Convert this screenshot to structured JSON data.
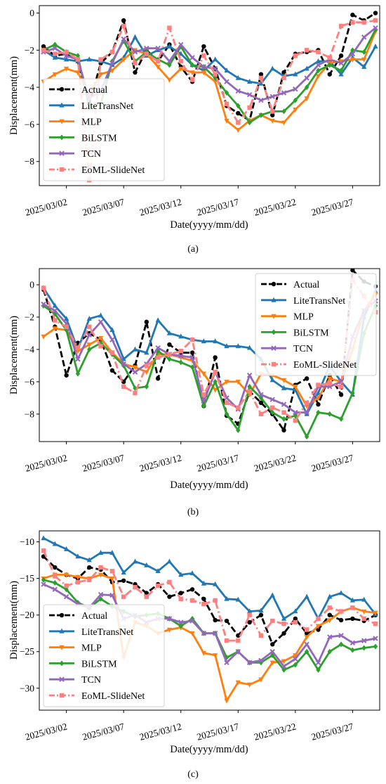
{
  "figure": {
    "panels": [
      {
        "caption": "(a)",
        "xlabel": "Date(yyyy/mm/dd)",
        "ylabel": "Displacement(mm)",
        "legend_position": "lower-left"
      },
      {
        "caption": "(b)",
        "xlabel": "Date(yyyy/mm/dd)",
        "ylabel": "Displacement(mm)",
        "legend_position": "upper-right"
      },
      {
        "caption": "(c)",
        "xlabel": "Date(yyyy/mm/dd)",
        "ylabel": "Displacement(mm)",
        "legend_position": "lower-left"
      }
    ]
  },
  "chart_data": [
    {
      "type": "line",
      "title": "",
      "xlabel": "Date(yyyy/mm/dd)",
      "ylabel": "Displacement(mm)",
      "x": [
        "2025/02/28",
        "2025/03/01",
        "2025/03/02",
        "2025/03/03",
        "2025/03/04",
        "2025/03/05",
        "2025/03/06",
        "2025/03/07",
        "2025/03/08",
        "2025/03/09",
        "2025/03/10",
        "2025/03/11",
        "2025/03/12",
        "2025/03/13",
        "2025/03/14",
        "2025/03/15",
        "2025/03/16",
        "2025/03/17",
        "2025/03/18",
        "2025/03/19",
        "2025/03/20",
        "2025/03/21",
        "2025/03/22",
        "2025/03/23",
        "2025/03/24",
        "2025/03/25",
        "2025/03/26",
        "2025/03/27",
        "2025/03/28",
        "2025/03/29"
      ],
      "x_ticks": [
        "2025/03/02",
        "2025/03/07",
        "2025/03/12",
        "2025/03/17",
        "2025/03/22",
        "2025/03/27"
      ],
      "ylim": [
        -9.3,
        0.4
      ],
      "y_ticks": [
        0,
        -2,
        -4,
        -6,
        -8
      ],
      "legend": "lower-left",
      "grid": false,
      "series": [
        {
          "name": "Actual",
          "color": "#000000",
          "marker": "circle",
          "dash": "dashed",
          "values": [
            -1.8,
            -2.3,
            -2.2,
            -2.6,
            -4.9,
            -2.7,
            -2.1,
            -0.4,
            -3.2,
            -2.0,
            -2.6,
            -1.7,
            -2.9,
            -3.7,
            -1.8,
            -3.0,
            -5.0,
            -5.4,
            -5.8,
            -3.3,
            -5.5,
            -3.2,
            -2.2,
            -2.1,
            -2.0,
            -3.3,
            -2.3,
            -0.1,
            -0.4,
            0.0
          ]
        },
        {
          "name": "LiteTransNet",
          "color": "#1f77b4",
          "marker": "triangle-up",
          "dash": "solid",
          "values": [
            -2.0,
            -2.4,
            -2.5,
            -2.6,
            -2.5,
            -2.6,
            -2.8,
            -2.4,
            -1.3,
            -2.3,
            -2.0,
            -1.8,
            -2.2,
            -2.8,
            -3.1,
            -2.5,
            -3.1,
            -3.5,
            -3.7,
            -3.8,
            -3.0,
            -3.4,
            -3.3,
            -3.0,
            -2.6,
            -2.6,
            -3.3,
            -2.4,
            -2.9,
            -1.8
          ]
        },
        {
          "name": "MLP",
          "color": "#ff7f0e",
          "marker": "triangle-down",
          "dash": "solid",
          "values": [
            -3.7,
            -3.3,
            -3.0,
            -3.2,
            -4.4,
            -3.3,
            -3.1,
            -2.5,
            -2.0,
            -2.2,
            -2.9,
            -3.6,
            -3.0,
            -3.2,
            -3.2,
            -3.7,
            -5.8,
            -6.3,
            -5.8,
            -5.5,
            -5.8,
            -5.9,
            -5.2,
            -4.6,
            -3.4,
            -2.7,
            -2.6,
            -2.5,
            -2.5,
            -1.0
          ]
        },
        {
          "name": "BiLSTM",
          "color": "#2ca02c",
          "marker": "diamond",
          "dash": "solid",
          "values": [
            -2.0,
            -1.7,
            -2.1,
            -2.3,
            -5.1,
            -4.9,
            -2.6,
            -1.5,
            -2.6,
            -2.1,
            -2.5,
            -2.8,
            -1.8,
            -2.8,
            -2.9,
            -3.5,
            -4.3,
            -5.0,
            -5.9,
            -5.5,
            -5.3,
            -5.3,
            -4.7,
            -4.0,
            -3.1,
            -2.8,
            -3.1,
            -2.0,
            -2.1,
            -0.9
          ]
        },
        {
          "name": "TCN",
          "color": "#9467bd",
          "marker": "x",
          "dash": "solid",
          "values": [
            -2.1,
            -1.9,
            -2.3,
            -2.5,
            -4.6,
            -4.2,
            -2.7,
            -1.4,
            -2.1,
            -1.9,
            -1.9,
            -2.6,
            -1.7,
            -2.4,
            -2.9,
            -3.0,
            -3.7,
            -4.2,
            -4.4,
            -4.7,
            -4.5,
            -4.3,
            -4.1,
            -3.5,
            -2.8,
            -2.5,
            -2.7,
            -2.2,
            -1.3,
            -0.8
          ]
        },
        {
          "name": "EoML-SlideNet",
          "color": "#ff7f7f",
          "marker": "square",
          "dash": "dashdot",
          "values": [
            -2.0,
            -2.2,
            -2.1,
            -2.5,
            -9.0,
            -2.5,
            -2.1,
            -0.7,
            -2.7,
            -2.2,
            -2.6,
            -0.8,
            -2.6,
            -3.6,
            -2.3,
            -3.3,
            -4.9,
            -5.9,
            -5.1,
            -3.5,
            -5.3,
            -3.5,
            -2.3,
            -2.0,
            -2.1,
            -2.4,
            -0.7,
            -0.5,
            -0.5,
            -0.4
          ]
        }
      ]
    },
    {
      "type": "line",
      "title": "",
      "xlabel": "Date(yyyy/mm/dd)",
      "ylabel": "Displacement(mm)",
      "x": [
        "2025/02/28",
        "2025/03/01",
        "2025/03/02",
        "2025/03/03",
        "2025/03/04",
        "2025/03/05",
        "2025/03/06",
        "2025/03/07",
        "2025/03/08",
        "2025/03/09",
        "2025/03/10",
        "2025/03/11",
        "2025/03/12",
        "2025/03/13",
        "2025/03/14",
        "2025/03/15",
        "2025/03/16",
        "2025/03/17",
        "2025/03/18",
        "2025/03/19",
        "2025/03/20",
        "2025/03/21",
        "2025/03/22",
        "2025/03/23",
        "2025/03/24",
        "2025/03/25",
        "2025/03/26",
        "2025/03/27",
        "2025/03/28",
        "2025/03/29"
      ],
      "x_ticks": [
        "2025/03/02",
        "2025/03/07",
        "2025/03/12",
        "2025/03/17",
        "2025/03/22",
        "2025/03/27"
      ],
      "ylim": [
        -9.7,
        1.0
      ],
      "y_ticks": [
        0,
        -2,
        -4,
        -6,
        -8
      ],
      "legend": "upper-right",
      "grid": false,
      "series": [
        {
          "name": "Actual",
          "color": "#000000",
          "marker": "circle",
          "dash": "dashed",
          "values": [
            -0.3,
            -2.6,
            -5.6,
            -3.6,
            -3.0,
            -3.4,
            -5.3,
            -6.0,
            -5.0,
            -2.3,
            -5.8,
            -3.7,
            -4.2,
            -4.2,
            -7.5,
            -4.5,
            -8.1,
            -8.6,
            -6.6,
            -7.3,
            -8.0,
            -9.0,
            -6.2,
            -5.8,
            -7.4,
            -5.6,
            -6.8,
            0.9,
            0.2,
            -0.1
          ]
        },
        {
          "name": "LiteTransNet",
          "color": "#1f77b4",
          "marker": "triangle-up",
          "dash": "solid",
          "values": [
            -0.2,
            -1.3,
            -2.1,
            -4.0,
            -2.1,
            -1.9,
            -2.8,
            -4.6,
            -4.0,
            -4.2,
            -2.2,
            -3.0,
            -3.2,
            -3.4,
            -3.5,
            -3.5,
            -3.8,
            -3.8,
            -3.9,
            -4.6,
            -5.9,
            -6.4,
            -6.5,
            -8.0,
            -6.7,
            -5.0,
            -6.0,
            -6.8,
            -2.0,
            -0.4
          ]
        },
        {
          "name": "MLP",
          "color": "#ff7f0e",
          "marker": "triangle-down",
          "dash": "solid",
          "values": [
            -3.2,
            -2.7,
            -2.8,
            -4.1,
            -3.7,
            -3.3,
            -4.2,
            -4.9,
            -5.1,
            -5.4,
            -4.3,
            -4.3,
            -4.5,
            -4.7,
            -5.5,
            -6.5,
            -6.0,
            -6.0,
            -6.8,
            -5.5,
            -5.6,
            -5.9,
            -6.3,
            -7.5,
            -7.0,
            -5.8,
            -6.0,
            -4.0,
            -1.6,
            -0.6
          ]
        },
        {
          "name": "BiLSTM",
          "color": "#2ca02c",
          "marker": "diamond",
          "dash": "solid",
          "values": [
            -1.3,
            -1.8,
            -2.8,
            -5.5,
            -4.0,
            -3.6,
            -4.3,
            -5.0,
            -6.4,
            -6.3,
            -4.1,
            -4.6,
            -4.8,
            -5.1,
            -7.5,
            -6.0,
            -8.0,
            -9.0,
            -6.3,
            -7.0,
            -7.9,
            -8.3,
            -8.1,
            -9.4,
            -7.9,
            -8.0,
            -8.3,
            -6.7,
            -3.0,
            -1.3
          ]
        },
        {
          "name": "TCN",
          "color": "#9467bd",
          "marker": "x",
          "dash": "solid",
          "values": [
            -1.2,
            -1.6,
            -2.4,
            -4.6,
            -3.1,
            -2.3,
            -3.4,
            -4.9,
            -5.4,
            -4.9,
            -3.9,
            -4.3,
            -4.4,
            -4.5,
            -7.2,
            -5.4,
            -7.0,
            -7.7,
            -5.6,
            -6.8,
            -7.1,
            -7.4,
            -7.9,
            -7.9,
            -6.3,
            -6.3,
            -6.0,
            -3.2,
            -1.6,
            -1.0
          ]
        },
        {
          "name": "EoML-SlideNet",
          "color": "#ff7f7f",
          "marker": "square",
          "dash": "dashdot",
          "values": [
            -0.2,
            -2.2,
            -2.6,
            -3.9,
            -2.6,
            -3.8,
            -4.2,
            -6.3,
            -6.7,
            -5.0,
            -4.5,
            -4.3,
            -4.1,
            -3.4,
            -6.8,
            -5.4,
            -7.3,
            -7.6,
            -6.6,
            -8.0,
            -7.6,
            -7.9,
            -8.4,
            -7.3,
            -6.2,
            -6.1,
            -6.3,
            0.3,
            -0.7,
            -1.7
          ]
        }
      ]
    },
    {
      "type": "line",
      "title": "",
      "xlabel": "Date(yyyy/mm/dd)",
      "ylabel": "Displacement(mm)",
      "x": [
        "2025/02/28",
        "2025/03/01",
        "2025/03/02",
        "2025/03/03",
        "2025/03/04",
        "2025/03/05",
        "2025/03/06",
        "2025/03/07",
        "2025/03/08",
        "2025/03/09",
        "2025/03/10",
        "2025/03/11",
        "2025/03/12",
        "2025/03/13",
        "2025/03/14",
        "2025/03/15",
        "2025/03/16",
        "2025/03/17",
        "2025/03/18",
        "2025/03/19",
        "2025/03/20",
        "2025/03/21",
        "2025/03/22",
        "2025/03/23",
        "2025/03/24",
        "2025/03/25",
        "2025/03/26",
        "2025/03/27",
        "2025/03/28",
        "2025/03/29"
      ],
      "x_ticks": [
        "2025/03/02",
        "2025/03/07",
        "2025/03/12",
        "2025/03/17",
        "2025/03/22",
        "2025/03/27"
      ],
      "ylim": [
        -33,
        -8.5
      ],
      "y_ticks": [
        -10,
        -15,
        -20,
        -25,
        -30
      ],
      "legend": "lower-left",
      "grid": false,
      "series": [
        {
          "name": "Actual",
          "color": "#000000",
          "marker": "circle",
          "dash": "dashed",
          "values": [
            -12.0,
            -13.5,
            -14.5,
            -15.0,
            -13.5,
            -13.8,
            -15.5,
            -15.3,
            -15.8,
            -17.0,
            -15.8,
            -17.5,
            -17.0,
            -16.5,
            -17.8,
            -20.7,
            -20.8,
            -22.8,
            -21.0,
            -20.0,
            -24.0,
            -22.5,
            -20.5,
            -22.5,
            -22.0,
            -20.0,
            -20.7,
            -20.5,
            -20.8,
            -20.0
          ]
        },
        {
          "name": "LiteTransNet",
          "color": "#1f77b4",
          "marker": "triangle-up",
          "dash": "solid",
          "values": [
            -9.5,
            -10.3,
            -11.0,
            -12.0,
            -12.5,
            -11.5,
            -11.5,
            -14.2,
            -12.7,
            -13.2,
            -14.0,
            -12.7,
            -14.5,
            -14.3,
            -15.7,
            -15.8,
            -17.8,
            -17.9,
            -19.5,
            -19.4,
            -17.3,
            -20.5,
            -19.5,
            -17.5,
            -20.5,
            -17.5,
            -17.0,
            -18.0,
            -17.9,
            -19.9
          ]
        },
        {
          "name": "MLP",
          "color": "#ff7f0e",
          "marker": "triangle-down",
          "dash": "solid",
          "values": [
            -15.0,
            -14.5,
            -14.5,
            -14.8,
            -15.0,
            -14.5,
            -15.0,
            -25.8,
            -21.0,
            -21.5,
            -22.5,
            -22.0,
            -21.7,
            -22.5,
            -25.2,
            -25.5,
            -31.7,
            -29.2,
            -29.5,
            -28.8,
            -26.5,
            -26.3,
            -25.5,
            -23.0,
            -21.5,
            -20.7,
            -19.5,
            -19.0,
            -19.5,
            -19.7
          ]
        },
        {
          "name": "BiLSTM",
          "color": "#2ca02c",
          "marker": "diamond",
          "dash": "solid",
          "values": [
            -15.2,
            -15.6,
            -16.5,
            -18.3,
            -19.0,
            -17.8,
            -18.8,
            -19.5,
            -20.2,
            -20.0,
            -19.8,
            -20.5,
            -21.5,
            -20.5,
            -22.5,
            -22.5,
            -25.8,
            -25.0,
            -26.5,
            -26.5,
            -25.5,
            -27.5,
            -26.8,
            -25.0,
            -27.5,
            -25.0,
            -24.0,
            -24.8,
            -24.5,
            -24.3
          ]
        },
        {
          "name": "TCN",
          "color": "#9467bd",
          "marker": "x",
          "dash": "solid",
          "values": [
            -15.8,
            -16.5,
            -17.5,
            -18.5,
            -19.0,
            -17.2,
            -17.3,
            -20.5,
            -20.0,
            -21.0,
            -20.5,
            -20.5,
            -21.0,
            -20.8,
            -22.5,
            -22.5,
            -26.5,
            -25.0,
            -26.5,
            -26.2,
            -25.0,
            -27.0,
            -26.0,
            -24.0,
            -26.5,
            -23.0,
            -22.8,
            -23.8,
            -23.5,
            -23.2
          ]
        },
        {
          "name": "EoML-SlideNet",
          "color": "#ff7f7f",
          "marker": "square",
          "dash": "dashdot",
          "values": [
            -11.2,
            -14.7,
            -16.0,
            -15.5,
            -15.2,
            -13.5,
            -14.0,
            -17.5,
            -16.2,
            -17.5,
            -16.0,
            -15.5,
            -17.8,
            -18.0,
            -18.5,
            -18.0,
            -23.5,
            -23.5,
            -20.0,
            -22.8,
            -20.8,
            -21.2,
            -21.0,
            -22.0,
            -20.5,
            -19.0,
            -19.5,
            -19.0,
            -20.5,
            -21.2
          ]
        }
      ]
    }
  ]
}
